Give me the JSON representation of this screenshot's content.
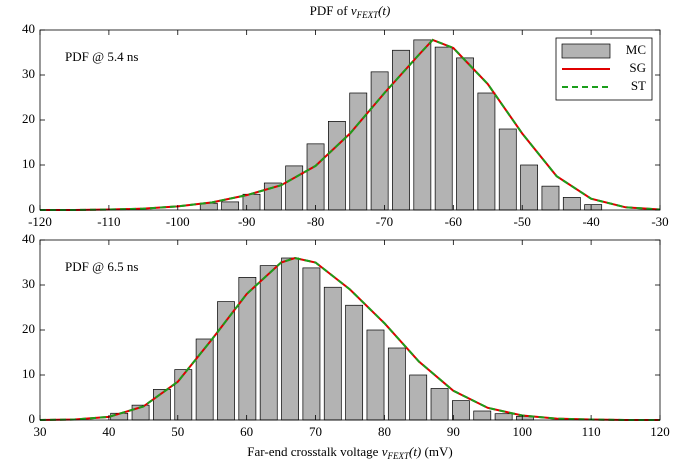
{
  "chart_data": [
    {
      "type": "histogram",
      "title": [
        "PDF of ",
        "v",
        "FEXT",
        "(t)"
      ],
      "annotation": "PDF @ 5.4 ns",
      "legend": "upper right",
      "xlim": [
        -120,
        -30
      ],
      "xticks": [
        -120,
        -110,
        -100,
        -90,
        -80,
        -70,
        -60,
        -50,
        -40,
        -30
      ],
      "ylim": [
        0,
        40
      ],
      "yticks": [
        0,
        10,
        20,
        30,
        40
      ],
      "series": [
        {
          "name": "MC",
          "color": "#b3b3b3",
          "bins": [
            -97.05,
            -93.95,
            -90.85,
            -87.75,
            -84.65,
            -81.55,
            -78.45,
            -75.35,
            -72.25,
            -69.15,
            -66.05,
            -62.95,
            -59.85,
            -56.75,
            -53.65,
            -50.55,
            -47.45,
            -44.35,
            -41.25,
            -38.15
          ],
          "values": [
            1.5,
            1.8,
            3.5,
            6,
            9.8,
            14.7,
            19.7,
            26,
            30.7,
            35.5,
            37.8,
            36.2,
            33.8,
            26,
            18,
            10,
            5.3,
            2.8,
            1.2
          ]
        },
        {
          "name": "SG",
          "color": "#e00000",
          "x": [
            -120,
            -115,
            -110,
            -105,
            -100,
            -95,
            -90,
            -85,
            -80,
            -75,
            -70,
            -65,
            -63,
            -60,
            -55,
            -50,
            -45,
            -40,
            -35,
            -30
          ],
          "values": [
            0,
            0,
            0.1,
            0.3,
            0.8,
            1.7,
            3.3,
            5.5,
            9.8,
            17,
            26,
            34.5,
            37.8,
            36,
            28,
            17,
            7.5,
            2.5,
            0.6,
            0.1
          ]
        },
        {
          "name": "ST",
          "color": "#1a9e1a",
          "dashed": true,
          "x": [
            -120,
            -115,
            -110,
            -105,
            -100,
            -95,
            -90,
            -85,
            -80,
            -75,
            -70,
            -65,
            -63,
            -60,
            -55,
            -50,
            -45,
            -40,
            -35,
            -30
          ],
          "values": [
            0,
            0,
            0.1,
            0.3,
            0.8,
            1.7,
            3.3,
            5.5,
            9.8,
            17,
            26,
            34.5,
            37.8,
            36,
            28,
            17,
            7.5,
            2.5,
            0.6,
            0.1
          ]
        }
      ]
    },
    {
      "type": "histogram",
      "annotation": "PDF @ 6.5 ns",
      "xlabel": [
        "Far-end crosstalk voltage ",
        "v",
        "FEXT",
        "(t)",
        " (mV)"
      ],
      "xlim": [
        30,
        120
      ],
      "xticks": [
        30,
        40,
        50,
        60,
        70,
        80,
        90,
        100,
        110,
        120
      ],
      "ylim": [
        0,
        40
      ],
      "yticks": [
        0,
        10,
        20,
        30,
        40
      ],
      "series": [
        {
          "color": "#b3b3b3",
          "bins": [
            39.95,
            43.05,
            46.15,
            49.25,
            52.35,
            55.45,
            58.55,
            61.65,
            64.75,
            67.85,
            70.95,
            74.05,
            77.15,
            80.25,
            83.35,
            86.45,
            89.55,
            92.65,
            95.75,
            98.85,
            101.95
          ],
          "values": [
            1.5,
            3.3,
            6.8,
            11.2,
            18,
            26.3,
            31.7,
            34.3,
            36,
            33.8,
            29.5,
            25.5,
            20,
            16,
            10,
            7,
            4.3,
            2,
            1.4,
            0.8
          ]
        },
        {
          "color": "#e00000",
          "x": [
            30,
            35,
            40,
            45,
            50,
            55,
            60,
            65,
            67,
            70,
            75,
            80,
            85,
            90,
            95,
            100,
            105,
            110,
            115,
            120
          ],
          "values": [
            0,
            0.1,
            0.7,
            3,
            8.5,
            18,
            28,
            35,
            36,
            35,
            29,
            21.5,
            13,
            6.5,
            2.7,
            1,
            0.3,
            0.1,
            0,
            0
          ]
        },
        {
          "color": "#1a9e1a",
          "dashed": true,
          "x": [
            30,
            35,
            40,
            45,
            50,
            55,
            60,
            65,
            67,
            70,
            75,
            80,
            85,
            90,
            95,
            100,
            105,
            110,
            115,
            120
          ],
          "values": [
            0,
            0.1,
            0.7,
            3,
            8.5,
            18,
            28,
            35,
            36,
            35,
            29,
            21.5,
            13,
            6.5,
            2.7,
            1,
            0.3,
            0.1,
            0,
            0
          ]
        }
      ]
    }
  ]
}
